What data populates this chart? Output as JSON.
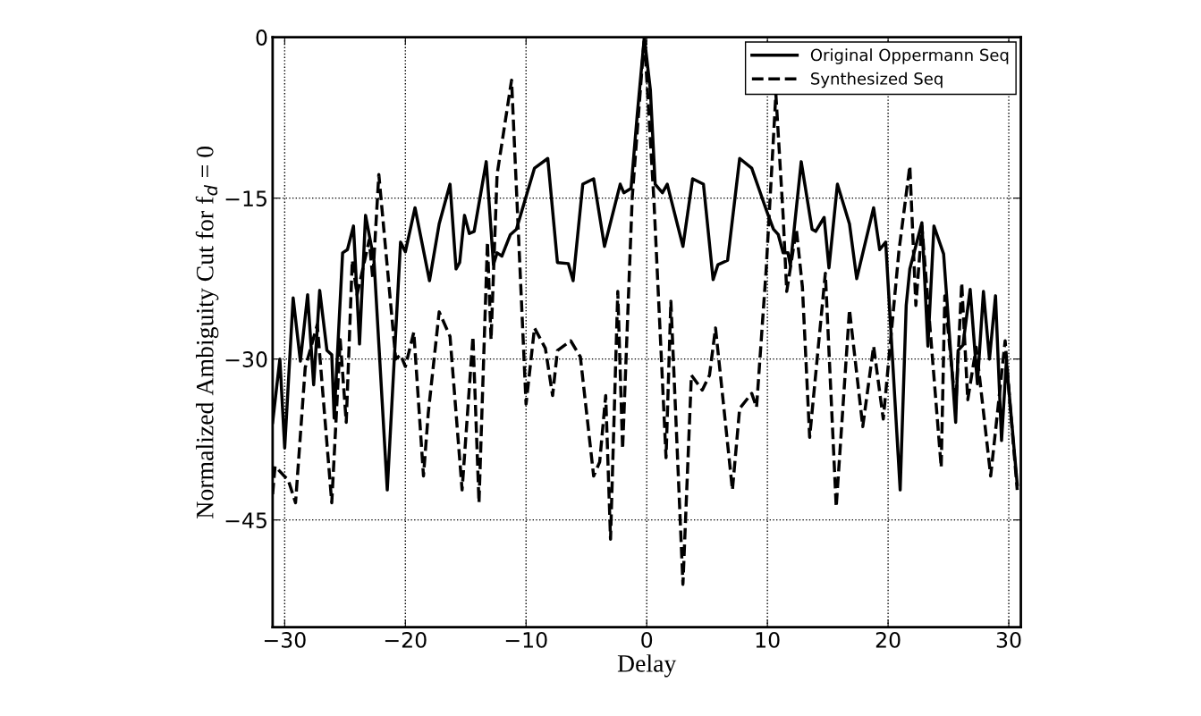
{
  "chart_data": {
    "type": "line",
    "xlabel": "Delay",
    "ylabel": "Normalized Ambiguity Cut for f$_{d}$ = 0",
    "xlim": [
      -31,
      31
    ],
    "ylim": [
      -55,
      0
    ],
    "xticks": [
      -30,
      -20,
      -10,
      0,
      10,
      20,
      30
    ],
    "yticks": [
      0,
      -15,
      -30,
      -45
    ],
    "grid": true,
    "legend": "top right",
    "marker": "none",
    "series": [
      {
        "name": "Original Oppermann Seq",
        "color": "#000000",
        "line_style": "solid",
        "x": [
          -31,
          -30.4,
          -30,
          -29.3,
          -28.7,
          -28.1,
          -27.6,
          -27.1,
          -26.5,
          -26.1,
          -25.9,
          -25.2,
          -24.8,
          -24.3,
          -23.8,
          -23.3,
          -22.6,
          -21.5,
          -20.4,
          -20,
          -19.2,
          -18,
          -17.2,
          -16.3,
          -15.8,
          -15.5,
          -15.1,
          -14.7,
          -14.3,
          -13.3,
          -12.7,
          -12.4,
          -12,
          -11.3,
          -10.8,
          -9.3,
          -8.2,
          -7.4,
          -6.5,
          -6.1,
          -5.3,
          -4.4,
          -3.5,
          -2.2,
          -1.9,
          -1.3,
          -0.8,
          -0.2,
          0.3,
          0.7,
          1.3,
          1.7,
          3,
          3.8,
          4.7,
          5.5,
          5.9,
          6.7,
          7.7,
          8.7,
          10,
          10.5,
          10.9,
          11.3,
          11.7,
          11.9,
          12.8,
          13.7,
          14,
          14.7,
          15.1,
          15.8,
          16.8,
          17.4,
          18.8,
          19.3,
          19.8,
          21,
          21.5,
          21.8,
          22.8,
          23.3,
          23.8,
          24.6,
          25.6,
          25.8,
          26.2,
          26.8,
          27.4,
          27.9,
          28.4,
          28.9,
          29.4,
          29.8,
          30.7
        ],
        "values": [
          -35.9,
          -30,
          -38.3,
          -24.3,
          -30.2,
          -24,
          -32.4,
          -23.6,
          -29.2,
          -29.6,
          -35.5,
          -20.1,
          -19.8,
          -17.6,
          -28.6,
          -16.6,
          -20.8,
          -42.2,
          -19.1,
          -20,
          -15.9,
          -22.7,
          -17.4,
          -13.7,
          -21.6,
          -21,
          -16.6,
          -18.3,
          -18.1,
          -11.6,
          -21.2,
          -20.1,
          -20.4,
          -18.4,
          -17.9,
          -12.2,
          -11.3,
          -21,
          -21.1,
          -22.7,
          -13.7,
          -13.2,
          -19.5,
          -13.7,
          -14.5,
          -14.1,
          -7.4,
          0,
          -4.9,
          -13.7,
          -14.5,
          -13.7,
          -19.5,
          -13.2,
          -13.7,
          -22.6,
          -21.2,
          -20.8,
          -11.3,
          -12.2,
          -16.4,
          -17.9,
          -18.4,
          -20.1,
          -20.1,
          -21.3,
          -11.6,
          -17.9,
          -18.1,
          -16.8,
          -21.5,
          -13.7,
          -17.4,
          -22.5,
          -15.9,
          -19.8,
          -19.1,
          -42.2,
          -25,
          -21.6,
          -17.3,
          -28.8,
          -17.6,
          -20.2,
          -35.9,
          -29.2,
          -28.7,
          -23.5,
          -32.3,
          -23.7,
          -30,
          -24.1,
          -37.6,
          -30.2,
          -41.7
        ]
      },
      {
        "name": "Synthesized Seq",
        "color": "#000000",
        "line_style": "dashed",
        "x": [
          -31,
          -30.8,
          -29.7,
          -29.1,
          -28.3,
          -27.3,
          -26.1,
          -25.4,
          -24.9,
          -24.4,
          -24,
          -23,
          -22.7,
          -22.2,
          -20.8,
          -20.4,
          -20,
          -19.3,
          -18.5,
          -18.1,
          -17.2,
          -16.3,
          -15.3,
          -14.4,
          -13.9,
          -13.2,
          -12.9,
          -12.4,
          -11.2,
          -10,
          -9.3,
          -8.4,
          -7.8,
          -7.4,
          -6.3,
          -5.5,
          -4.4,
          -3.9,
          -3.4,
          -3,
          -2.4,
          -2,
          -1.2,
          -0.2,
          0.6,
          1.6,
          2,
          3,
          3.7,
          4.6,
          5.2,
          5.7,
          7.1,
          7.7,
          8.7,
          9.1,
          9.9,
          10.7,
          11.3,
          11.6,
          12.4,
          12.9,
          13.5,
          14.8,
          15.7,
          16.8,
          17.9,
          18.8,
          19.6,
          20.9,
          21.8,
          22.3,
          22.8,
          24.4,
          24.7,
          25.6,
          26.1,
          26.6,
          27.3,
          28.5,
          29.7,
          30.1,
          30.7
        ],
        "values": [
          -42.6,
          -40,
          -41.3,
          -43.4,
          -30.8,
          -26.8,
          -43.4,
          -28.2,
          -35.9,
          -20.8,
          -24,
          -18.9,
          -22.5,
          -12.8,
          -30,
          -29.6,
          -30.7,
          -27.5,
          -40.9,
          -35,
          -25.6,
          -27.9,
          -42.2,
          -27.9,
          -43.4,
          -19.1,
          -28.2,
          -12.8,
          -4,
          -34.2,
          -27.1,
          -29,
          -33.4,
          -29.2,
          -28.3,
          -29.8,
          -40.9,
          -39.6,
          -33.4,
          -46.8,
          -23.7,
          -38.4,
          -14.9,
          0,
          -15.3,
          -39.2,
          -24.6,
          -51,
          -31.5,
          -32.9,
          -31.5,
          -27.1,
          -42.2,
          -34.6,
          -33.2,
          -34.5,
          -21.6,
          -5.3,
          -16.6,
          -23.7,
          -17.9,
          -23.3,
          -37.3,
          -22,
          -43.8,
          -25.4,
          -36.3,
          -28.8,
          -35.6,
          -19.9,
          -12,
          -25,
          -17.6,
          -40.1,
          -24.1,
          -34.6,
          -22.9,
          -33.8,
          -28.9,
          -40.9,
          -28.3,
          -34.2,
          -42.2
        ]
      }
    ]
  }
}
